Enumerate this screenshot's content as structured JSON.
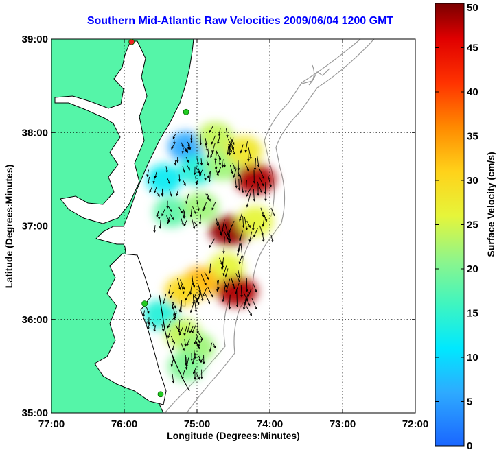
{
  "chart_data": {
    "type": "heatmap",
    "title": "Southern Mid-Atlantic Raw Velocities 2009/06/04 1200 GMT",
    "xlabel": "Longitude (Degrees:Minutes)",
    "ylabel": "Latitude (Degrees:Minutes)",
    "xlim": [
      -77,
      -72
    ],
    "ylim": [
      35,
      39
    ],
    "x_ticks": [
      -77,
      -76,
      -75,
      -74,
      -73,
      -72
    ],
    "x_tick_labels": [
      "77:00",
      "76:00",
      "75:00",
      "74:00",
      "73:00",
      "72:00"
    ],
    "y_ticks": [
      35,
      36,
      37,
      38,
      39
    ],
    "y_tick_labels": [
      "35:00",
      "36:00",
      "37:00",
      "38:00",
      "39:00"
    ],
    "grid": true,
    "colorbar": {
      "label": "Surface Velocity (cm/s)",
      "min": 0,
      "max": 50,
      "ticks": [
        0,
        5,
        10,
        15,
        20,
        25,
        30,
        35,
        40,
        45,
        50
      ],
      "tick_labels": [
        "0",
        "5",
        "10",
        "15",
        "20",
        "25",
        "30",
        "35",
        "40",
        "45",
        "50"
      ]
    },
    "colors": {
      "land": "#55f5a8",
      "coast": "#000000",
      "bathymetry": "#999999",
      "arrow": "#000000",
      "station": "#22cc22",
      "station_alt": "#ee2222"
    },
    "stations": [
      {
        "lon": -75.9,
        "lat": 38.97,
        "status": "alt"
      },
      {
        "lon": -75.15,
        "lat": 38.22
      },
      {
        "lon": -75.72,
        "lat": 36.17
      },
      {
        "lon": -75.5,
        "lat": 35.2
      }
    ],
    "velocity_regions": [
      {
        "lon": -75.15,
        "lat": 37.85,
        "speed": 6
      },
      {
        "lon": -75.45,
        "lat": 37.5,
        "speed": 12
      },
      {
        "lon": -75.0,
        "lat": 37.6,
        "speed": 14
      },
      {
        "lon": -74.75,
        "lat": 37.95,
        "speed": 24
      },
      {
        "lon": -74.65,
        "lat": 37.65,
        "speed": 22
      },
      {
        "lon": -74.2,
        "lat": 37.5,
        "speed": 48
      },
      {
        "lon": -74.35,
        "lat": 37.8,
        "speed": 28
      },
      {
        "lon": -75.35,
        "lat": 37.15,
        "speed": 18
      },
      {
        "lon": -74.95,
        "lat": 37.2,
        "speed": 22
      },
      {
        "lon": -74.55,
        "lat": 36.95,
        "speed": 49
      },
      {
        "lon": -74.2,
        "lat": 37.05,
        "speed": 26
      },
      {
        "lon": -74.6,
        "lat": 36.55,
        "speed": 26
      },
      {
        "lon": -74.45,
        "lat": 36.3,
        "speed": 48
      },
      {
        "lon": -74.95,
        "lat": 36.4,
        "speed": 33
      },
      {
        "lon": -75.2,
        "lat": 36.3,
        "speed": 30
      },
      {
        "lon": -75.5,
        "lat": 36.05,
        "speed": 14
      },
      {
        "lon": -75.2,
        "lat": 35.85,
        "speed": 24
      },
      {
        "lon": -75.0,
        "lat": 35.7,
        "speed": 22
      },
      {
        "lon": -75.15,
        "lat": 35.5,
        "speed": 20
      }
    ]
  }
}
